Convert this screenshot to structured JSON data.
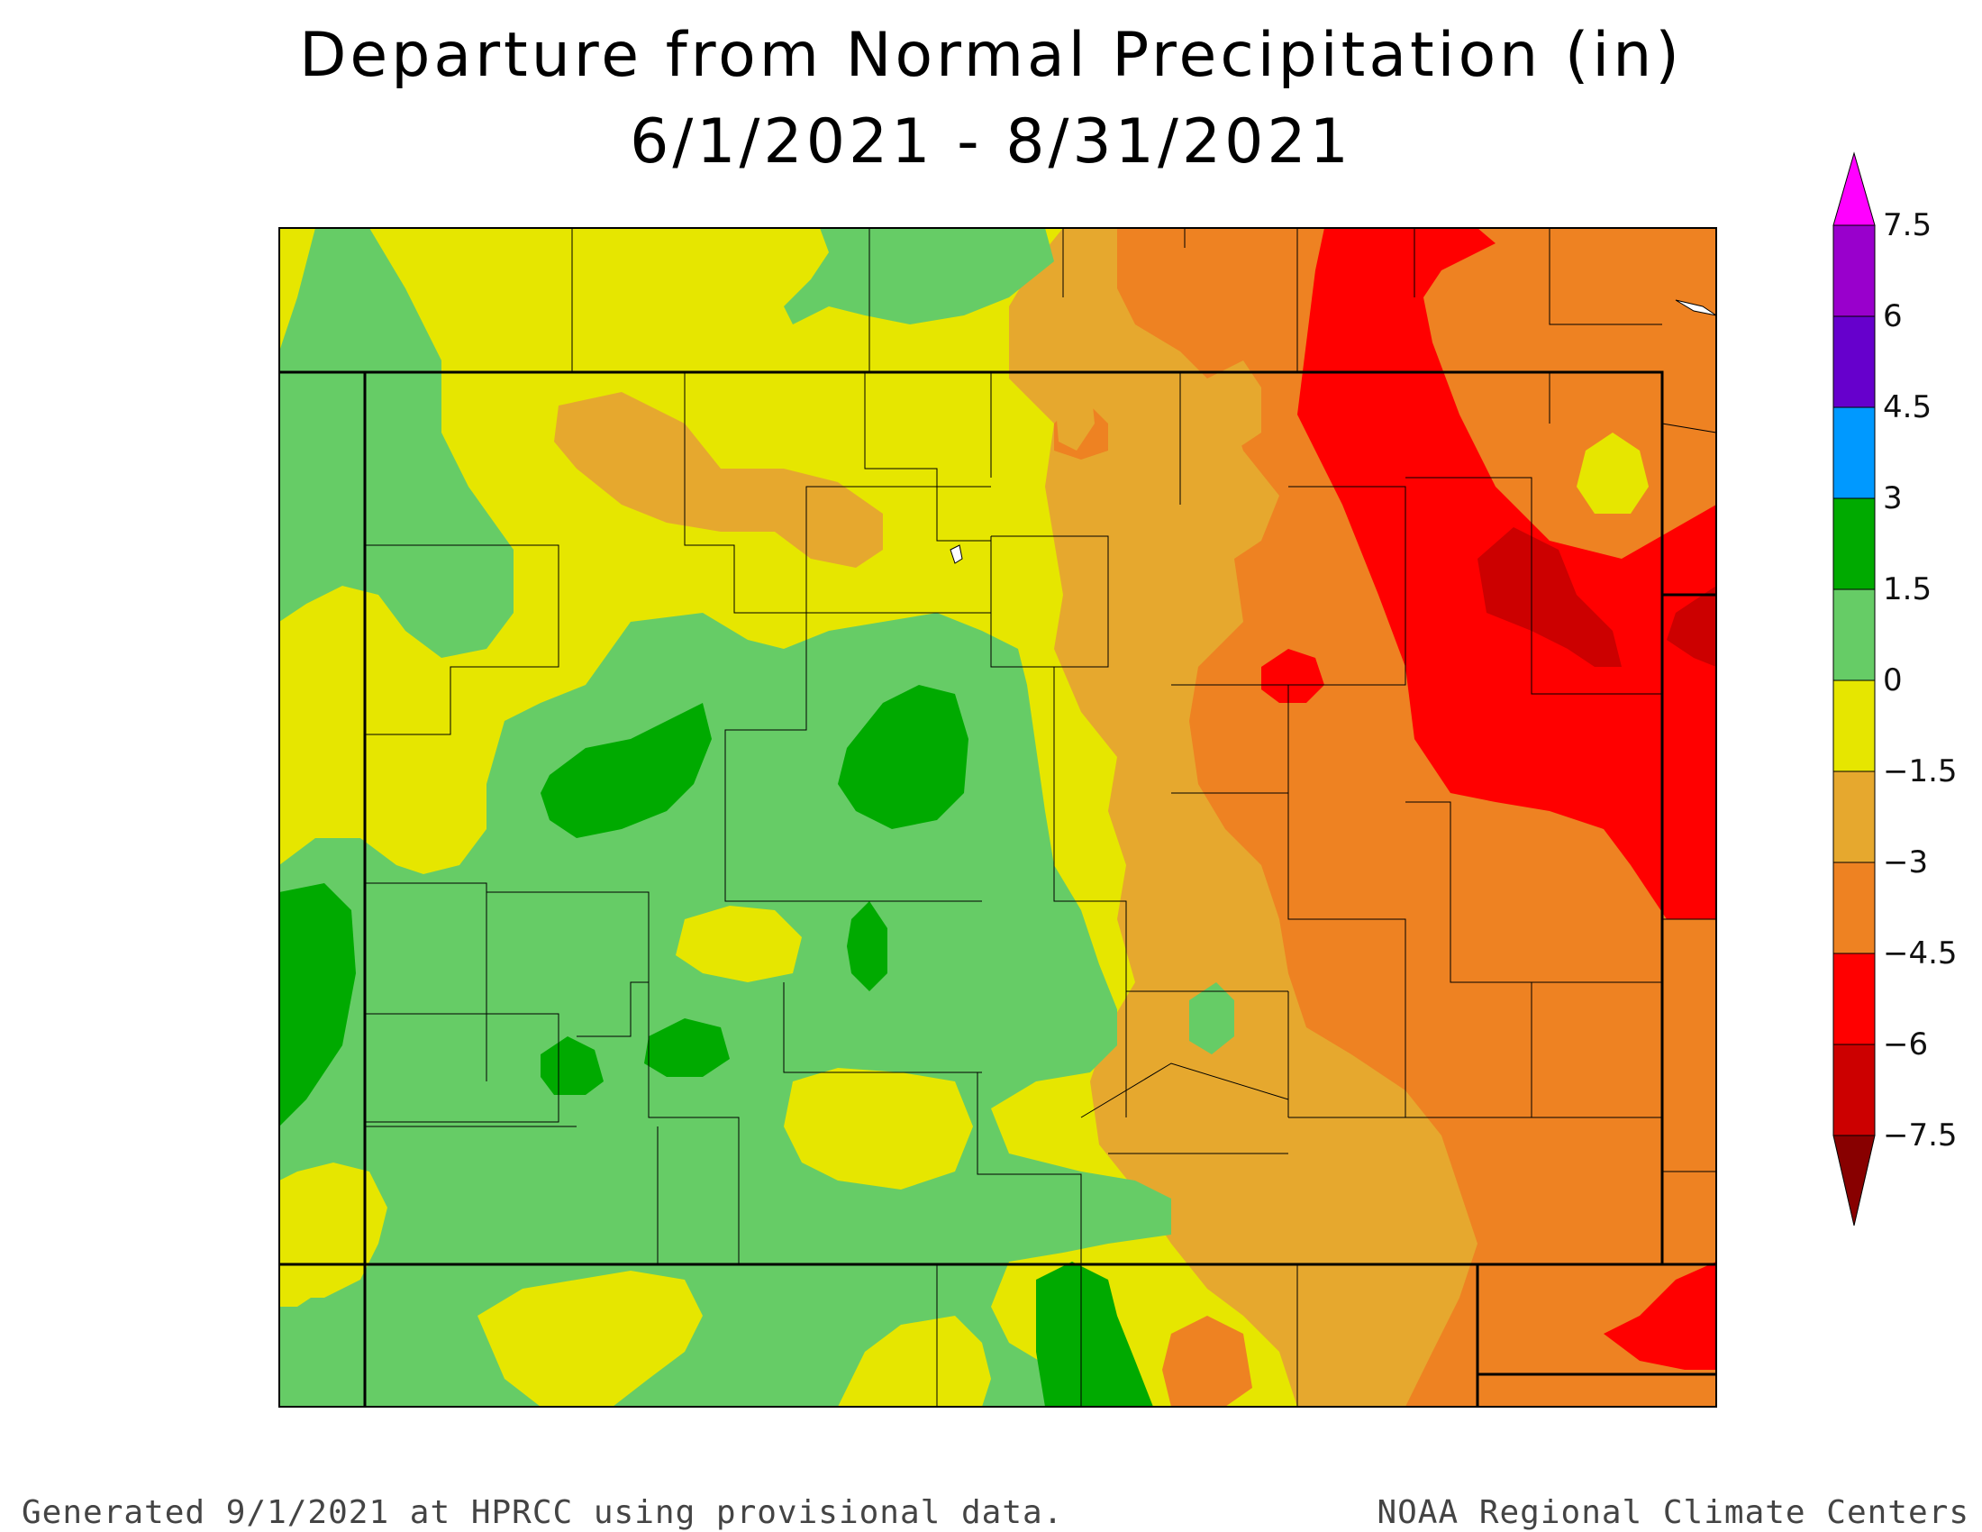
{
  "title": {
    "line1": "Departure from Normal Precipitation (in)",
    "line2": "6/1/2021 - 8/31/2021"
  },
  "legend": {
    "breaks": [
      "7.5",
      "6",
      "4.5",
      "3",
      "1.5",
      "0",
      "−1.5",
      "−3",
      "−4.5",
      "−6",
      "−7.5"
    ],
    "colors": [
      "#ff00ff",
      "#9900cc",
      "#6600cc",
      "#0099ff",
      "#00aa00",
      "#66cc66",
      "#e6e600",
      "#e6a82e",
      "#ee8222",
      "#ff0000",
      "#cc0000",
      "#880000"
    ]
  },
  "palette": {
    "yellow": "#e6e600",
    "light_green": "#66cc66",
    "dark_green": "#00aa00",
    "gold": "#e6a82e",
    "orange": "#ee8222",
    "red": "#ff0000",
    "dark_red": "#cc0000"
  },
  "footer": {
    "left": "Generated 9/1/2021 at HPRCC using provisional data.",
    "right": "NOAA Regional Climate Centers"
  }
}
